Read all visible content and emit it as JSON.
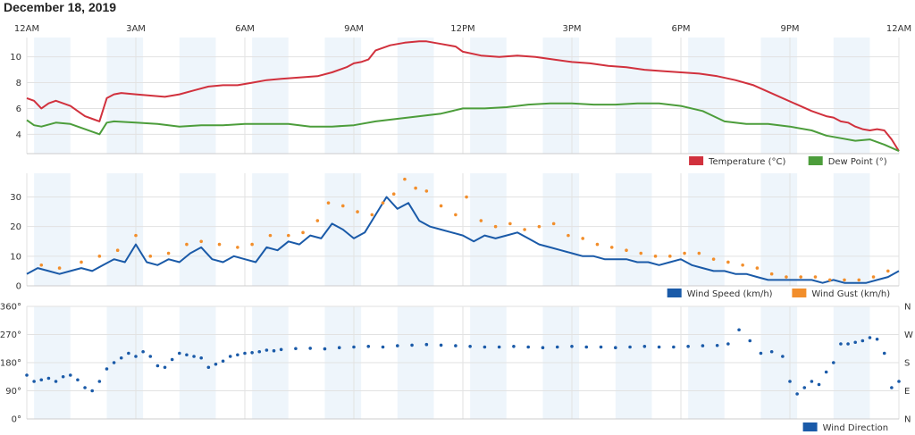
{
  "page": {
    "title": "December 18, 2019"
  },
  "chart_data": [
    {
      "type": "line",
      "name": "temperature-dewpoint",
      "x_ticks": [
        "12AM",
        "3AM",
        "6AM",
        "9AM",
        "12PM",
        "3PM",
        "6PM",
        "9PM",
        "12AM"
      ],
      "x_unit": "hours since midnight",
      "xlim": [
        0,
        24
      ],
      "ylim": [
        2.5,
        11.5
      ],
      "y_ticks": [
        4,
        6,
        8,
        10
      ],
      "legend_position": "bottom-right",
      "grid": true,
      "series": [
        {
          "name": "Temperature (°C)",
          "color": "#d1313d",
          "x": [
            0,
            0.2,
            0.4,
            0.6,
            0.8,
            1.0,
            1.2,
            1.4,
            1.6,
            1.8,
            2.0,
            2.2,
            2.4,
            2.6,
            3.0,
            3.4,
            3.8,
            4.2,
            4.6,
            5.0,
            5.4,
            5.8,
            6.2,
            6.6,
            7.0,
            7.5,
            8.0,
            8.4,
            8.8,
            9.0,
            9.2,
            9.4,
            9.6,
            10.0,
            10.4,
            10.8,
            11.0,
            11.4,
            11.8,
            12.0,
            12.5,
            13.0,
            13.5,
            14.0,
            14.5,
            15.0,
            15.5,
            16.0,
            16.5,
            17.0,
            17.5,
            18.0,
            18.5,
            19.0,
            19.5,
            20.0,
            20.4,
            20.8,
            21.2,
            21.6,
            22.0,
            22.2,
            22.4,
            22.6,
            22.8,
            23.0,
            23.2,
            23.4,
            23.6,
            23.8,
            24.0
          ],
          "y": [
            6.8,
            6.6,
            6.0,
            6.4,
            6.6,
            6.4,
            6.2,
            5.8,
            5.4,
            5.2,
            5.0,
            6.8,
            7.1,
            7.2,
            7.1,
            7.0,
            6.9,
            7.1,
            7.4,
            7.7,
            7.8,
            7.8,
            8.0,
            8.2,
            8.3,
            8.4,
            8.5,
            8.8,
            9.2,
            9.5,
            9.6,
            9.8,
            10.5,
            10.9,
            11.1,
            11.2,
            11.2,
            11.0,
            10.8,
            10.4,
            10.1,
            10.0,
            10.1,
            10.0,
            9.8,
            9.6,
            9.5,
            9.3,
            9.2,
            9.0,
            8.9,
            8.8,
            8.7,
            8.5,
            8.2,
            7.8,
            7.3,
            6.8,
            6.3,
            5.8,
            5.4,
            5.3,
            5.0,
            4.9,
            4.6,
            4.4,
            4.3,
            4.4,
            4.3,
            3.6,
            2.7
          ]
        },
        {
          "name": "Dew Point (°)",
          "color": "#4c9d3b",
          "x": [
            0,
            0.2,
            0.4,
            0.8,
            1.2,
            1.6,
            2.0,
            2.2,
            2.4,
            3.0,
            3.6,
            4.2,
            4.8,
            5.4,
            6.0,
            6.6,
            7.2,
            7.8,
            8.4,
            9.0,
            9.6,
            10.2,
            10.8,
            11.4,
            12.0,
            12.6,
            13.2,
            13.8,
            14.4,
            15.0,
            15.6,
            16.2,
            16.8,
            17.4,
            18.0,
            18.6,
            19.2,
            19.8,
            20.4,
            21.0,
            21.6,
            22.0,
            22.4,
            22.8,
            23.2,
            23.6,
            24.0
          ],
          "y": [
            5.1,
            4.7,
            4.6,
            4.9,
            4.8,
            4.4,
            4.0,
            4.9,
            5.0,
            4.9,
            4.8,
            4.6,
            4.7,
            4.7,
            4.8,
            4.8,
            4.8,
            4.6,
            4.6,
            4.7,
            5.0,
            5.2,
            5.4,
            5.6,
            6.0,
            6.0,
            6.1,
            6.3,
            6.4,
            6.4,
            6.3,
            6.3,
            6.4,
            6.4,
            6.2,
            5.8,
            5.0,
            4.8,
            4.8,
            4.6,
            4.3,
            3.9,
            3.7,
            3.5,
            3.6,
            3.2,
            2.7
          ]
        }
      ]
    },
    {
      "type": "line",
      "name": "wind",
      "x_unit": "hours since midnight",
      "xlim": [
        0,
        24
      ],
      "ylim": [
        0,
        38
      ],
      "y_ticks": [
        0,
        10,
        20,
        30
      ],
      "legend_position": "bottom-right",
      "grid": true,
      "series": [
        {
          "name": "Wind Speed (km/h)",
          "color": "#1a5aa8",
          "x": [
            0,
            0.3,
            0.6,
            0.9,
            1.2,
            1.5,
            1.8,
            2.1,
            2.4,
            2.7,
            3.0,
            3.3,
            3.6,
            3.9,
            4.2,
            4.5,
            4.8,
            5.1,
            5.4,
            5.7,
            6.0,
            6.3,
            6.6,
            6.9,
            7.2,
            7.5,
            7.8,
            8.1,
            8.4,
            8.7,
            9.0,
            9.3,
            9.6,
            9.9,
            10.2,
            10.5,
            10.8,
            11.1,
            11.4,
            11.7,
            12.0,
            12.3,
            12.6,
            12.9,
            13.2,
            13.5,
            13.8,
            14.1,
            14.4,
            14.7,
            15.0,
            15.3,
            15.6,
            15.9,
            16.2,
            16.5,
            16.8,
            17.1,
            17.4,
            17.7,
            18.0,
            18.3,
            18.6,
            18.9,
            19.2,
            19.5,
            19.8,
            20.1,
            20.4,
            20.7,
            21.0,
            21.3,
            21.6,
            21.9,
            22.2,
            22.5,
            22.8,
            23.1,
            23.4,
            23.7,
            24.0
          ],
          "y": [
            4,
            6,
            5,
            4,
            5,
            6,
            5,
            7,
            9,
            8,
            14,
            8,
            7,
            9,
            8,
            11,
            13,
            9,
            8,
            10,
            9,
            8,
            13,
            12,
            15,
            14,
            17,
            16,
            21,
            19,
            16,
            18,
            24,
            30,
            26,
            28,
            22,
            20,
            19,
            18,
            17,
            15,
            17,
            16,
            17,
            18,
            16,
            14,
            13,
            12,
            11,
            10,
            10,
            9,
            9,
            9,
            8,
            8,
            7,
            8,
            9,
            7,
            6,
            5,
            5,
            4,
            4,
            3,
            2,
            2,
            2,
            2,
            2,
            1,
            2,
            1,
            1,
            1,
            2,
            3,
            5
          ]
        },
        {
          "name": "Wind Gust (km/h)",
          "color": "#f28e2b",
          "x": [
            0.4,
            0.9,
            1.5,
            2.0,
            2.5,
            3.0,
            3.4,
            3.9,
            4.4,
            4.8,
            5.3,
            5.8,
            6.2,
            6.7,
            7.2,
            7.6,
            8.0,
            8.3,
            8.7,
            9.1,
            9.5,
            9.8,
            10.1,
            10.4,
            10.7,
            11.0,
            11.4,
            11.8,
            12.1,
            12.5,
            12.9,
            13.3,
            13.7,
            14.1,
            14.5,
            14.9,
            15.3,
            15.7,
            16.1,
            16.5,
            16.9,
            17.3,
            17.7,
            18.1,
            18.5,
            18.9,
            19.3,
            19.7,
            20.1,
            20.5,
            20.9,
            21.3,
            21.7,
            22.1,
            22.5,
            22.9,
            23.3,
            23.7
          ],
          "y": [
            7,
            6,
            8,
            10,
            12,
            17,
            10,
            11,
            14,
            15,
            14,
            13,
            14,
            17,
            17,
            18,
            22,
            28,
            27,
            25,
            24,
            28,
            31,
            36,
            33,
            32,
            27,
            24,
            30,
            22,
            20,
            21,
            19,
            20,
            21,
            17,
            16,
            14,
            13,
            12,
            11,
            10,
            10,
            11,
            11,
            9,
            8,
            7,
            6,
            4,
            3,
            3,
            3,
            2,
            2,
            2,
            3,
            5
          ]
        }
      ]
    },
    {
      "type": "scatter",
      "name": "wind-direction",
      "x_unit": "hours since midnight",
      "xlim": [
        0,
        24
      ],
      "ylim": [
        0,
        360
      ],
      "y_ticks": [
        "0°",
        "90°",
        "180°",
        "270°",
        "360°"
      ],
      "y_ticks_right": [
        "N",
        "E",
        "S",
        "W",
        "N"
      ],
      "legend_position": "bottom-right",
      "grid": true,
      "series": [
        {
          "name": "Wind Direction",
          "color": "#1a5aa8",
          "x": [
            0.0,
            0.2,
            0.4,
            0.6,
            0.8,
            1.0,
            1.2,
            1.4,
            1.6,
            1.8,
            2.0,
            2.2,
            2.4,
            2.6,
            2.8,
            3.0,
            3.2,
            3.4,
            3.6,
            3.8,
            4.0,
            4.2,
            4.4,
            4.6,
            4.8,
            5.0,
            5.2,
            5.4,
            5.6,
            5.8,
            6.0,
            6.2,
            6.4,
            6.6,
            6.8,
            7.0,
            7.4,
            7.8,
            8.2,
            8.6,
            9.0,
            9.4,
            9.8,
            10.2,
            10.6,
            11.0,
            11.4,
            11.8,
            12.2,
            12.6,
            13.0,
            13.4,
            13.8,
            14.2,
            14.6,
            15.0,
            15.4,
            15.8,
            16.2,
            16.6,
            17.0,
            17.4,
            17.8,
            18.2,
            18.6,
            19.0,
            19.3,
            19.6,
            19.9,
            20.2,
            20.5,
            20.8,
            21.0,
            21.2,
            21.4,
            21.6,
            21.8,
            22.0,
            22.2,
            22.4,
            22.6,
            22.8,
            23.0,
            23.2,
            23.4,
            23.6,
            23.8,
            24.0
          ],
          "y": [
            140,
            120,
            125,
            130,
            120,
            135,
            140,
            125,
            100,
            90,
            120,
            160,
            180,
            195,
            210,
            200,
            215,
            200,
            170,
            165,
            190,
            210,
            205,
            200,
            195,
            165,
            175,
            185,
            200,
            205,
            210,
            212,
            215,
            220,
            218,
            222,
            225,
            226,
            224,
            228,
            230,
            232,
            230,
            234,
            236,
            238,
            236,
            234,
            232,
            230,
            230,
            232,
            230,
            228,
            230,
            232,
            230,
            230,
            228,
            230,
            232,
            230,
            230,
            232,
            234,
            235,
            240,
            285,
            250,
            210,
            215,
            200,
            120,
            80,
            100,
            120,
            110,
            150,
            180,
            240,
            240,
            245,
            250,
            260,
            255,
            210,
            100,
            120
          ]
        }
      ]
    }
  ]
}
